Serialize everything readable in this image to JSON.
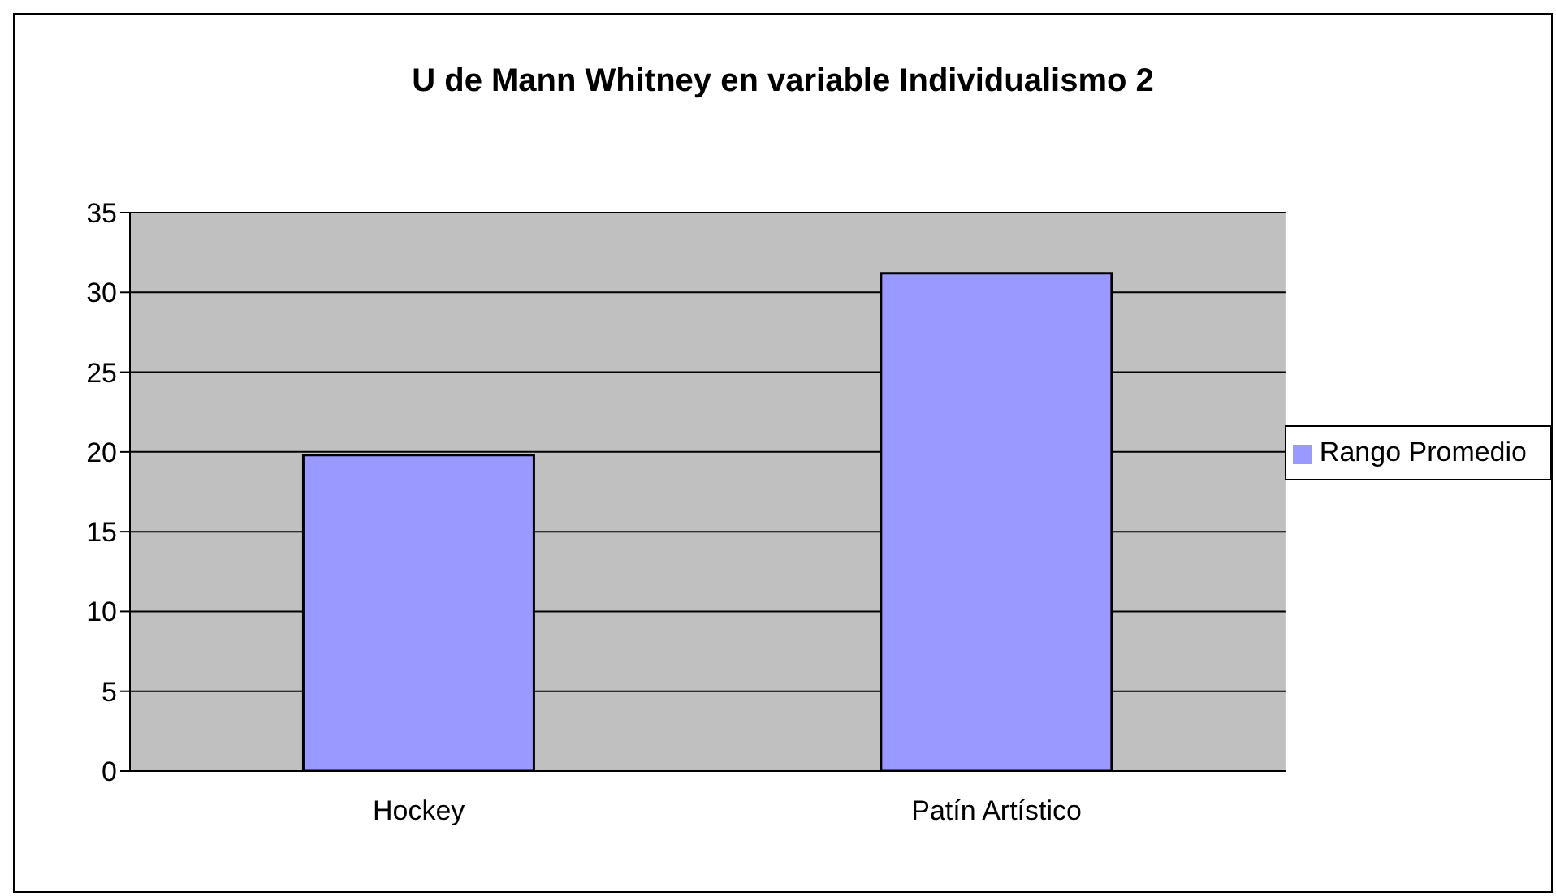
{
  "chart_data": {
    "type": "bar",
    "title": "U de Mann Whitney en variable Individualismo 2",
    "categories": [
      "Hockey",
      "Patín Artístico"
    ],
    "series": [
      {
        "name": "Rango Promedio",
        "color": "#9999ff",
        "values": [
          19.8,
          31.2
        ]
      }
    ],
    "ylim": [
      0,
      35
    ],
    "yticks": [
      0,
      5,
      10,
      15,
      20,
      25,
      30,
      35
    ],
    "grid": "y",
    "legend": "right"
  }
}
